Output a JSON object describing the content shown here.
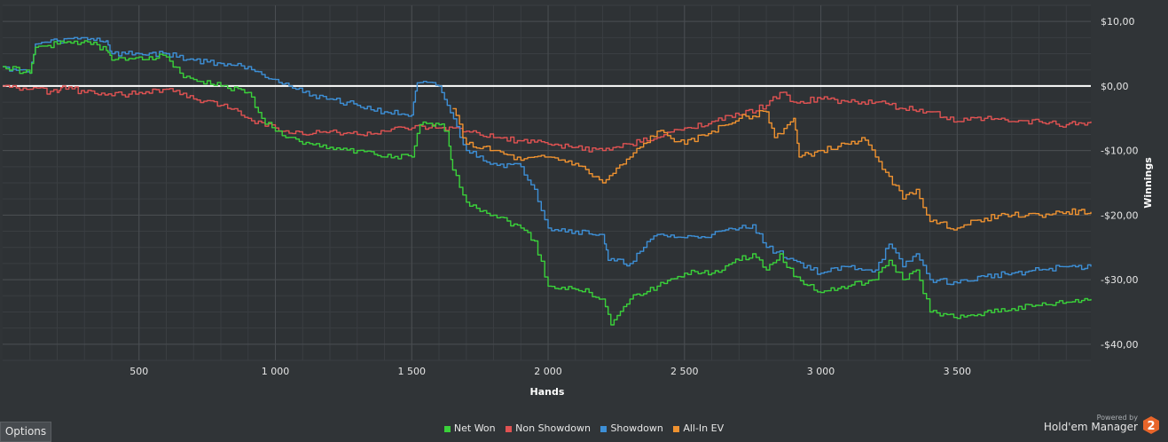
{
  "chart_data": {
    "type": "line",
    "xlabel": "Hands",
    "ylabel": "Winnings",
    "xlim": [
      0,
      3990
    ],
    "ylim": [
      -42.5,
      12.5
    ],
    "x_ticks": [
      500,
      1000,
      1500,
      2000,
      2500,
      3000,
      3500
    ],
    "x_tick_labels": [
      "500",
      "1 000",
      "1 500",
      "2 000",
      "2 500",
      "3 000",
      "3 500"
    ],
    "y_ticks": [
      10,
      0,
      -10,
      -20,
      -30,
      -40
    ],
    "y_tick_labels": [
      "$10,00",
      "$0,00",
      "-$10,00",
      "-$20,00",
      "-$30,00",
      "-$40,00"
    ],
    "grid": true,
    "zero_line": 0,
    "legend_position": "bottom-center",
    "series": [
      {
        "name": "Non Showdown",
        "color": "#e05252",
        "points": [
          [
            0,
            0
          ],
          [
            100,
            -0.5
          ],
          [
            200,
            -1
          ],
          [
            220,
            0
          ],
          [
            300,
            -1
          ],
          [
            400,
            -1.5
          ],
          [
            500,
            -1
          ],
          [
            600,
            -0.5
          ],
          [
            700,
            -2
          ],
          [
            800,
            -3
          ],
          [
            850,
            -3.5
          ],
          [
            900,
            -5
          ],
          [
            1000,
            -6.5
          ],
          [
            1100,
            -7.5
          ],
          [
            1200,
            -7
          ],
          [
            1300,
            -7.5
          ],
          [
            1400,
            -7
          ],
          [
            1500,
            -6.5
          ],
          [
            1600,
            -6.5
          ],
          [
            1700,
            -7
          ],
          [
            1800,
            -8
          ],
          [
            1900,
            -8.5
          ],
          [
            2000,
            -9
          ],
          [
            2100,
            -9.5
          ],
          [
            2200,
            -10
          ],
          [
            2300,
            -9
          ],
          [
            2400,
            -8
          ],
          [
            2500,
            -6.5
          ],
          [
            2600,
            -5.5
          ],
          [
            2700,
            -4.5
          ],
          [
            2800,
            -3
          ],
          [
            2850,
            -1
          ],
          [
            2900,
            -2.5
          ],
          [
            3000,
            -2
          ],
          [
            3100,
            -2.5
          ],
          [
            3200,
            -2.5
          ],
          [
            3300,
            -3.5
          ],
          [
            3400,
            -4
          ],
          [
            3500,
            -5.5
          ],
          [
            3600,
            -5
          ],
          [
            3700,
            -5.5
          ],
          [
            3800,
            -5.5
          ],
          [
            3900,
            -6
          ],
          [
            3990,
            -5.5
          ]
        ]
      },
      {
        "name": "Showdown",
        "color": "#3d8fd6",
        "points": [
          [
            0,
            3
          ],
          [
            100,
            2
          ],
          [
            120,
            6.5
          ],
          [
            200,
            7
          ],
          [
            300,
            7.5
          ],
          [
            380,
            7
          ],
          [
            400,
            5
          ],
          [
            500,
            5
          ],
          [
            600,
            5
          ],
          [
            700,
            4
          ],
          [
            800,
            3.5
          ],
          [
            900,
            3
          ],
          [
            1000,
            1
          ],
          [
            1050,
            0
          ],
          [
            1100,
            -1
          ],
          [
            1200,
            -2
          ],
          [
            1300,
            -3
          ],
          [
            1400,
            -4
          ],
          [
            1500,
            -4.5
          ],
          [
            1520,
            0.5
          ],
          [
            1600,
            0
          ],
          [
            1630,
            -3
          ],
          [
            1700,
            -10
          ],
          [
            1800,
            -12
          ],
          [
            1900,
            -12.5
          ],
          [
            1950,
            -16
          ],
          [
            2000,
            -22
          ],
          [
            2100,
            -22.5
          ],
          [
            2200,
            -23
          ],
          [
            2220,
            -27
          ],
          [
            2300,
            -27.5
          ],
          [
            2350,
            -25
          ],
          [
            2400,
            -23
          ],
          [
            2500,
            -23.5
          ],
          [
            2600,
            -23
          ],
          [
            2700,
            -22
          ],
          [
            2750,
            -21.5
          ],
          [
            2800,
            -25
          ],
          [
            2900,
            -27
          ],
          [
            3000,
            -29
          ],
          [
            3100,
            -28
          ],
          [
            3200,
            -28.5
          ],
          [
            3250,
            -24.5
          ],
          [
            3300,
            -28
          ],
          [
            3350,
            -26
          ],
          [
            3400,
            -30
          ],
          [
            3500,
            -30.5
          ],
          [
            3600,
            -29.5
          ],
          [
            3700,
            -29
          ],
          [
            3800,
            -28.5
          ],
          [
            3900,
            -28
          ],
          [
            3990,
            -28
          ]
        ]
      },
      {
        "name": "All-In EV",
        "color": "#ef9230",
        "points": [
          [
            1650,
            -3.5
          ],
          [
            1700,
            -9
          ],
          [
            1800,
            -10
          ],
          [
            1900,
            -11.5
          ],
          [
            2000,
            -11
          ],
          [
            2100,
            -12
          ],
          [
            2200,
            -15
          ],
          [
            2300,
            -11
          ],
          [
            2400,
            -7
          ],
          [
            2500,
            -9
          ],
          [
            2600,
            -7
          ],
          [
            2700,
            -5
          ],
          [
            2800,
            -4
          ],
          [
            2830,
            -8
          ],
          [
            2900,
            -5
          ],
          [
            2920,
            -11
          ],
          [
            3000,
            -10
          ],
          [
            3100,
            -9
          ],
          [
            3150,
            -8
          ],
          [
            3200,
            -11
          ],
          [
            3250,
            -14
          ],
          [
            3300,
            -17.5
          ],
          [
            3350,
            -16
          ],
          [
            3400,
            -21
          ],
          [
            3500,
            -22
          ],
          [
            3600,
            -20.5
          ],
          [
            3700,
            -20
          ],
          [
            3800,
            -20
          ],
          [
            3900,
            -19.5
          ],
          [
            3990,
            -19.5
          ]
        ]
      },
      {
        "name": "Net Won",
        "color": "#3ad13a",
        "points": [
          [
            0,
            3
          ],
          [
            100,
            2
          ],
          [
            120,
            6
          ],
          [
            200,
            6.5
          ],
          [
            300,
            7
          ],
          [
            380,
            5.5
          ],
          [
            400,
            4
          ],
          [
            500,
            4.5
          ],
          [
            600,
            4.5
          ],
          [
            650,
            2
          ],
          [
            700,
            1
          ],
          [
            800,
            0
          ],
          [
            900,
            -1
          ],
          [
            950,
            -5
          ],
          [
            1000,
            -7
          ],
          [
            1100,
            -9
          ],
          [
            1200,
            -9.5
          ],
          [
            1300,
            -10
          ],
          [
            1400,
            -11
          ],
          [
            1500,
            -11
          ],
          [
            1530,
            -6
          ],
          [
            1600,
            -6
          ],
          [
            1630,
            -7
          ],
          [
            1650,
            -13
          ],
          [
            1700,
            -18
          ],
          [
            1800,
            -20
          ],
          [
            1900,
            -22
          ],
          [
            1950,
            -24
          ],
          [
            2000,
            -31
          ],
          [
            2100,
            -31.5
          ],
          [
            2150,
            -32
          ],
          [
            2200,
            -33
          ],
          [
            2230,
            -37
          ],
          [
            2300,
            -33
          ],
          [
            2400,
            -31
          ],
          [
            2500,
            -29
          ],
          [
            2600,
            -29
          ],
          [
            2700,
            -27
          ],
          [
            2750,
            -26
          ],
          [
            2800,
            -28.5
          ],
          [
            2850,
            -26
          ],
          [
            2900,
            -29.5
          ],
          [
            3000,
            -32
          ],
          [
            3100,
            -31
          ],
          [
            3200,
            -30
          ],
          [
            3250,
            -27
          ],
          [
            3300,
            -30
          ],
          [
            3350,
            -28.5
          ],
          [
            3400,
            -35
          ],
          [
            3500,
            -36
          ],
          [
            3600,
            -35
          ],
          [
            3700,
            -34.5
          ],
          [
            3800,
            -34
          ],
          [
            3900,
            -33.5
          ],
          [
            3990,
            -33
          ]
        ]
      }
    ]
  },
  "legend": {
    "items": [
      {
        "label": "Net Won",
        "color": "#3ad13a"
      },
      {
        "label": "Non Showdown",
        "color": "#e05252"
      },
      {
        "label": "Showdown",
        "color": "#3d8fd6"
      },
      {
        "label": "All-In EV",
        "color": "#ef9230"
      }
    ]
  },
  "options_label": "Options",
  "brand": {
    "powered_by": "Powered by",
    "name": "Hold'em Manager",
    "logo_text": "2",
    "logo_color": "#e8652a"
  }
}
